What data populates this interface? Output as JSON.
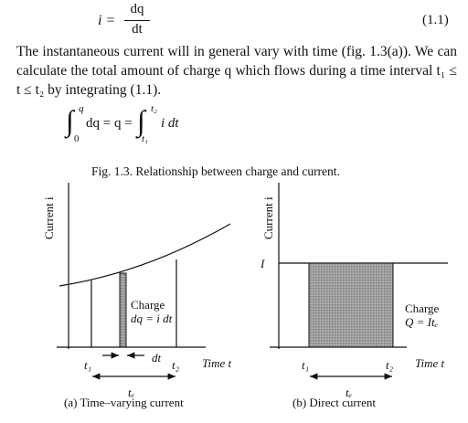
{
  "equation_1": {
    "lhs": "i =",
    "numerator": "dq",
    "denominator": "dt",
    "number": "(1.1)"
  },
  "paragraph": "The instantaneous current will in general vary with time (fig. 1.3(a)). We can calculate the total amount of charge q which flows during a time interval t₁ ≤ t ≤ t₂ by integrating (1.1).",
  "equation_2": {
    "integral_sign": "∫",
    "upper_1": "q",
    "lower_1": "0",
    "middle": "dq = q =",
    "upper_2": "t₂",
    "lower_2": "t₁",
    "integrand": "i dt"
  },
  "figure": {
    "caption": "Fig. 1.3. Relationship between charge and current.",
    "panels": [
      {
        "y_label": "Current i",
        "x_label": "Time t",
        "t1": "t₁",
        "t2": "t₂",
        "dt": "dt",
        "te": "tₑ",
        "annotation": [
          "Charge",
          "dq = i dt"
        ],
        "caption": "(a) Time–varying current"
      },
      {
        "y_label": "Current i",
        "x_label": "Time t",
        "level": "I",
        "t1": "t₁",
        "t2": "t₂",
        "te": "tₑ",
        "annotation": [
          "Charge",
          "Q = Itₑ"
        ],
        "caption": "(b) Direct current"
      }
    ]
  }
}
